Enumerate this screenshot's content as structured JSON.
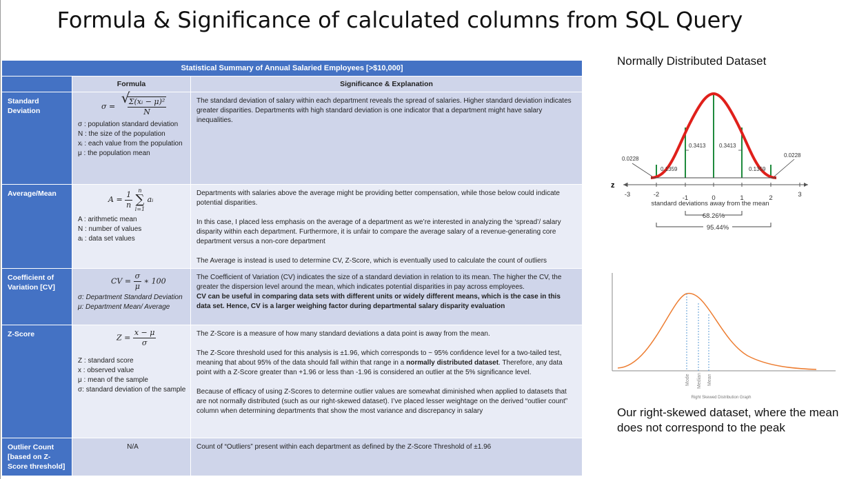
{
  "page": {
    "title": "Formula & Significance of calculated columns from SQL Query"
  },
  "table": {
    "caption": "Statistical Summary of Annual Salaried Employees [>$10,000]",
    "headers": {
      "formula": "Formula",
      "significance": "Significance & Explanation"
    },
    "rows": [
      {
        "name": "Standard Deviation",
        "formula": {
          "lhs": "σ =",
          "numerator": "Σ(xᵢ − μ)²",
          "denominator": "N",
          "defs": [
            "σ : population standard deviation",
            "N : the size of the population",
            "xᵢ : each value from the population",
            "μ : the population mean"
          ]
        },
        "significance": [
          "The standard deviation of salary within each department reveals the spread of salaries. Higher standard deviation indicates greater disparities. Departments with high standard deviation is one indicator that a department might have salary inequalities."
        ]
      },
      {
        "name": "Average/Mean",
        "formula": {
          "lhs": "A =",
          "frac_num": "1",
          "frac_den": "n",
          "sum_top": "n",
          "sum_bottom": "i=1",
          "term": "aᵢ",
          "defs": [
            "A : arithmetic mean",
            "N : number of values",
            "aᵢ : data set values"
          ]
        },
        "significance": [
          "Departments with salaries above the average might be providing better compensation, while those below could indicate potential disparities.",
          "In this case, I placed less emphasis on the average of a department as we’re interested in analyzing the ‘spread’/ salary disparity within each department. Furthermore, it is unfair to compare the average salary of a revenue-generating core department versus a non-core department",
          "The Average is instead is used to determine CV, Z-Score, which is eventually used to calculate the count of outliers"
        ]
      },
      {
        "name": "Coefficient of Variation [CV]",
        "formula": {
          "lhs": "CV =",
          "numerator": "σ",
          "denominator": "μ",
          "rhs": "∗ 100",
          "defs": [
            "σ: Department Standard Deviation",
            "μ: Department Mean/ Average"
          ]
        },
        "significance": {
          "plain": "The Coefficient of Variation (CV) indicates the size of a standard deviation in relation to its mean. The higher the CV, the greater the dispersion level around the mean, which indicates potential disparities in pay across employees.",
          "bold": "CV can be useful in comparing data sets with different units or widely different means, which is the case in this data set. Hence, CV is a larger weighing factor during departmental salary disparity evaluation"
        }
      },
      {
        "name": "Z-Score",
        "formula": {
          "lhs": "Z =",
          "numerator": "x − μ",
          "denominator": "σ",
          "defs": [
            "Z : standard score",
            "x : observed value",
            "μ : mean of the sample",
            "σ: standard deviation of the sample"
          ]
        },
        "significance": {
          "p1": "The Z-Score is a measure of how many standard deviations a data point is away from the mean.",
          "p2_a": "The Z-Score threshold used for this analysis is ±1.96, which corresponds to ~ 95% confidence level for a two-tailed test, meaning that about 95% of the data should fall within that range in a ",
          "p2_bold": "normally distributed dataset",
          "p2_b": ". Therefore, any data point with a Z-Score greater than +1.96 or less than -1.96 is considered an outlier at the 5% significance level.",
          "p3": "Because of efficacy of using Z-Scores to determine outlier values are somewhat diminished when applied to datasets that are not normally distributed (such as our right-skewed dataset). I’ve placed lesser weightage on the derived “outlier count” column when determining departments that show the most variance and discrepancy in salary"
        }
      },
      {
        "name": "Outlier Count [based on Z-Score threshold]",
        "formula": {
          "text": "N/A"
        },
        "significance": [
          "Count of “Outliers” present within each department as defined by the Z-Score Threshold of ±1.96"
        ]
      }
    ]
  },
  "normal_chart": {
    "title": "Normally Distributed Dataset",
    "axis_symbol": "z",
    "ticks": [
      "-3",
      "-2",
      "-1",
      "0",
      "1",
      "2",
      "3"
    ],
    "xlabel": "standard deviations away from the mean",
    "areas": {
      "tail": "0.0228",
      "outer": "0.1359",
      "inner": "0.3413"
    },
    "ranges": [
      "68.26%",
      "95.44%"
    ],
    "colors": {
      "curve": "#e0201b",
      "dividers": "#1e8a3c"
    }
  },
  "skew_chart": {
    "labels": [
      "Mode",
      "Median",
      "Mean"
    ],
    "title": "Right Skewed Distribution Graph",
    "colors": {
      "curve": "#ed7d31",
      "markers": "#5b9bd5"
    }
  },
  "caption": "Our right-skewed dataset, where the mean does not correspond to the peak"
}
